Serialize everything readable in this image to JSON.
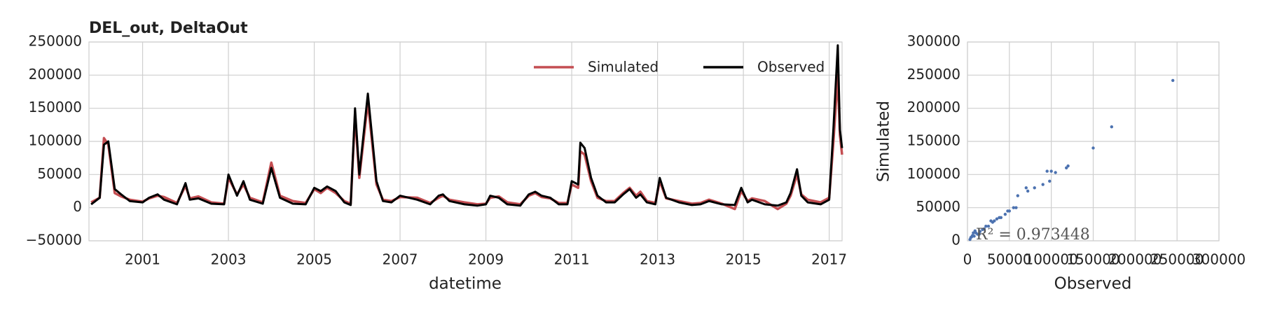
{
  "chart_data": [
    {
      "type": "line",
      "title": "DEL_out, DeltaOut",
      "xlabel": "datetime",
      "xlim": [
        1999.75,
        2017.3
      ],
      "xticks": [
        2001,
        2003,
        2005,
        2007,
        2009,
        2011,
        2013,
        2015,
        2017
      ],
      "ylim": [
        -50000,
        250000
      ],
      "yticks": [
        {
          "value": -50000,
          "label": "−50000"
        },
        0,
        50000,
        100000,
        150000,
        200000,
        250000
      ],
      "grid": true,
      "legend": "upper right",
      "x": [
        1999.8,
        2000.0,
        2000.1,
        2000.2,
        2000.35,
        2000.5,
        2000.7,
        2001.0,
        2001.15,
        2001.35,
        2001.5,
        2001.8,
        2002.0,
        2002.1,
        2002.3,
        2002.6,
        2002.9,
        2003.0,
        2003.2,
        2003.35,
        2003.5,
        2003.8,
        2004.0,
        2004.2,
        2004.5,
        2004.8,
        2005.0,
        2005.15,
        2005.3,
        2005.5,
        2005.7,
        2005.85,
        2005.95,
        2006.05,
        2006.25,
        2006.45,
        2006.6,
        2006.8,
        2007.0,
        2007.4,
        2007.7,
        2007.9,
        2008.0,
        2008.15,
        2008.5,
        2008.8,
        2009.0,
        2009.1,
        2009.3,
        2009.5,
        2009.8,
        2010.0,
        2010.15,
        2010.3,
        2010.5,
        2010.7,
        2010.9,
        2011.0,
        2011.15,
        2011.2,
        2011.3,
        2011.45,
        2011.6,
        2011.8,
        2012.0,
        2012.2,
        2012.35,
        2012.5,
        2012.6,
        2012.75,
        2012.95,
        2013.05,
        2013.2,
        2013.5,
        2013.8,
        2014.0,
        2014.2,
        2014.5,
        2014.8,
        2014.95,
        2015.1,
        2015.2,
        2015.5,
        2015.8,
        2016.0,
        2016.1,
        2016.25,
        2016.35,
        2016.5,
        2016.8,
        2017.0,
        2017.1,
        2017.2,
        2017.25,
        2017.3
      ],
      "series": [
        {
          "name": "Simulated",
          "color": "#c44e52",
          "values": [
            8000,
            15000,
            105000,
            95000,
            22000,
            17000,
            12000,
            9000,
            14000,
            18000,
            16000,
            7000,
            33000,
            14000,
            17000,
            8000,
            6000,
            45000,
            20000,
            35000,
            15000,
            8000,
            68000,
            18000,
            10000,
            7000,
            28000,
            22000,
            30000,
            22000,
            10000,
            6000,
            140000,
            45000,
            160000,
            35000,
            12000,
            10000,
            16000,
            15000,
            7000,
            15000,
            18000,
            12000,
            8000,
            5000,
            6000,
            15000,
            17000,
            8000,
            5000,
            18000,
            22000,
            16000,
            14000,
            7000,
            7000,
            35000,
            30000,
            85000,
            80000,
            40000,
            15000,
            10000,
            10000,
            22000,
            30000,
            18000,
            24000,
            10000,
            7000,
            40000,
            14000,
            10000,
            6000,
            7000,
            12000,
            6000,
            -2000,
            25000,
            10000,
            14000,
            10000,
            -2000,
            6000,
            18000,
            50000,
            20000,
            12000,
            8000,
            15000,
            100000,
            200000,
            110000,
            80000
          ]
        },
        {
          "name": "Observed",
          "color": "#000000",
          "values": [
            5000,
            15000,
            95000,
            100000,
            28000,
            20000,
            10000,
            8000,
            15000,
            20000,
            12000,
            5000,
            37000,
            12000,
            14000,
            6000,
            5000,
            50000,
            18000,
            40000,
            12000,
            6000,
            60000,
            15000,
            6000,
            5000,
            30000,
            25000,
            32000,
            25000,
            8000,
            4000,
            150000,
            50000,
            172000,
            40000,
            10000,
            8000,
            18000,
            12000,
            5000,
            18000,
            20000,
            10000,
            5000,
            3000,
            5000,
            18000,
            15000,
            5000,
            3000,
            20000,
            24000,
            18000,
            15000,
            5000,
            5000,
            40000,
            35000,
            98000,
            90000,
            45000,
            18000,
            8000,
            8000,
            20000,
            28000,
            15000,
            20000,
            8000,
            5000,
            45000,
            15000,
            8000,
            4000,
            5000,
            10000,
            5000,
            4000,
            30000,
            8000,
            12000,
            5000,
            3000,
            8000,
            22000,
            58000,
            18000,
            8000,
            5000,
            12000,
            120000,
            245000,
            118000,
            90000
          ]
        }
      ]
    },
    {
      "type": "scatter",
      "xlabel": "Observed",
      "ylabel": "Simulated",
      "annotation": "R² = 0.973448",
      "xlim": [
        0,
        300000
      ],
      "xticks": [
        0,
        50000,
        100000,
        150000,
        200000,
        250000,
        300000
      ],
      "ylim": [
        0,
        300000
      ],
      "yticks": [
        0,
        50000,
        100000,
        150000,
        200000,
        250000,
        300000
      ],
      "grid": true,
      "color": "#4c72b0",
      "x": [
        3000,
        5000,
        6000,
        8000,
        10000,
        12000,
        15000,
        18000,
        20000,
        22000,
        25000,
        28000,
        30000,
        32000,
        35000,
        38000,
        40000,
        45000,
        48000,
        50000,
        55000,
        58000,
        60000,
        70000,
        72000,
        80000,
        90000,
        95000,
        98000,
        100000,
        105000,
        118000,
        120000,
        150000,
        172000,
        245000,
        4000,
        7000,
        9000,
        14000
      ],
      "y": [
        2000,
        6000,
        8000,
        7000,
        12000,
        10000,
        14000,
        17000,
        18000,
        22000,
        22000,
        30000,
        28000,
        30000,
        33000,
        35000,
        35000,
        40000,
        45000,
        45000,
        50000,
        50000,
        68000,
        80000,
        75000,
        80000,
        85000,
        105000,
        90000,
        105000,
        103000,
        110000,
        113000,
        140000,
        172000,
        242000,
        5000,
        12000,
        15000,
        10000
      ]
    }
  ]
}
